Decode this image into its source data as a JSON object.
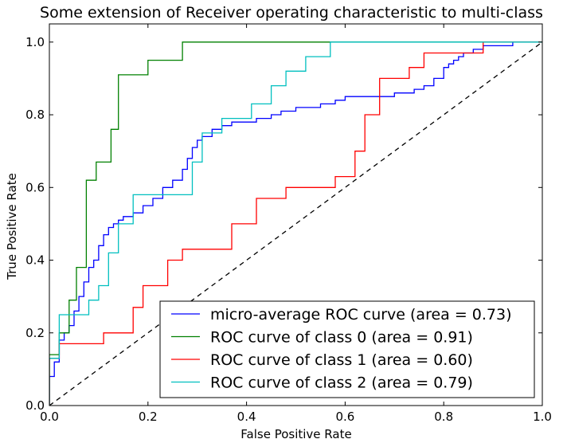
{
  "chart_data": {
    "type": "line",
    "title": "Some extension of Receiver operating characteristic to multi-class",
    "xlabel": "False Positive Rate",
    "ylabel": "True Positive Rate",
    "xlim": [
      0.0,
      1.0
    ],
    "ylim": [
      0.0,
      1.05
    ],
    "xticks": [
      0.0,
      0.2,
      0.4,
      0.6,
      0.8,
      1.0
    ],
    "xtick_labels": [
      "0.0",
      "0.2",
      "0.4",
      "0.6",
      "0.8",
      "1.0"
    ],
    "yticks": [
      0.0,
      0.2,
      0.4,
      0.6,
      0.8,
      1.0
    ],
    "ytick_labels": [
      "0.0",
      "0.2",
      "0.4",
      "0.6",
      "0.8",
      "1.0"
    ],
    "grid": false,
    "legend_position": "lower-right",
    "series": [
      {
        "name": "micro-average ROC curve (area = 0.73)",
        "color": "#0000ff",
        "x": [
          0.0,
          0.0,
          0.01,
          0.01,
          0.02,
          0.02,
          0.03,
          0.03,
          0.04,
          0.04,
          0.05,
          0.05,
          0.06,
          0.06,
          0.07,
          0.07,
          0.08,
          0.08,
          0.09,
          0.09,
          0.1,
          0.1,
          0.11,
          0.11,
          0.12,
          0.12,
          0.13,
          0.13,
          0.14,
          0.14,
          0.15,
          0.15,
          0.17,
          0.17,
          0.19,
          0.19,
          0.21,
          0.21,
          0.23,
          0.23,
          0.25,
          0.25,
          0.27,
          0.27,
          0.28,
          0.28,
          0.29,
          0.29,
          0.3,
          0.3,
          0.31,
          0.31,
          0.33,
          0.33,
          0.35,
          0.35,
          0.37,
          0.37,
          0.42,
          0.42,
          0.45,
          0.45,
          0.47,
          0.47,
          0.5,
          0.5,
          0.55,
          0.55,
          0.58,
          0.58,
          0.6,
          0.6,
          0.65,
          0.65,
          0.7,
          0.7,
          0.74,
          0.74,
          0.76,
          0.76,
          0.78,
          0.78,
          0.8,
          0.8,
          0.81,
          0.81,
          0.82,
          0.82,
          0.83,
          0.83,
          0.84,
          0.84,
          0.86,
          0.86,
          0.88,
          0.88,
          0.9,
          0.9,
          0.94,
          0.94,
          1.0
        ],
        "y": [
          0.0,
          0.08,
          0.08,
          0.12,
          0.12,
          0.18,
          0.18,
          0.2,
          0.2,
          0.22,
          0.22,
          0.26,
          0.26,
          0.3,
          0.3,
          0.34,
          0.34,
          0.38,
          0.38,
          0.4,
          0.4,
          0.44,
          0.44,
          0.47,
          0.47,
          0.49,
          0.49,
          0.5,
          0.5,
          0.51,
          0.51,
          0.52,
          0.52,
          0.53,
          0.53,
          0.55,
          0.55,
          0.57,
          0.57,
          0.6,
          0.6,
          0.62,
          0.62,
          0.65,
          0.65,
          0.68,
          0.68,
          0.71,
          0.71,
          0.73,
          0.73,
          0.74,
          0.74,
          0.76,
          0.76,
          0.77,
          0.77,
          0.78,
          0.78,
          0.79,
          0.79,
          0.8,
          0.8,
          0.81,
          0.81,
          0.82,
          0.82,
          0.83,
          0.83,
          0.84,
          0.84,
          0.85,
          0.85,
          0.85,
          0.85,
          0.86,
          0.86,
          0.87,
          0.87,
          0.88,
          0.88,
          0.9,
          0.9,
          0.93,
          0.93,
          0.94,
          0.94,
          0.95,
          0.95,
          0.96,
          0.96,
          0.97,
          0.97,
          0.98,
          0.98,
          0.99,
          0.99,
          0.99,
          0.99,
          1.0,
          1.0
        ]
      },
      {
        "name": "ROC curve of class 0 (area = 0.91)",
        "color": "#008000",
        "x": [
          0.0,
          0.0,
          0.02,
          0.02,
          0.04,
          0.04,
          0.055,
          0.055,
          0.075,
          0.075,
          0.095,
          0.095,
          0.125,
          0.125,
          0.14,
          0.14,
          0.2,
          0.2,
          0.27,
          0.27,
          1.0
        ],
        "y": [
          0.0,
          0.14,
          0.14,
          0.2,
          0.2,
          0.29,
          0.29,
          0.38,
          0.38,
          0.62,
          0.62,
          0.67,
          0.67,
          0.76,
          0.76,
          0.91,
          0.91,
          0.95,
          0.95,
          1.0,
          1.0
        ]
      },
      {
        "name": "ROC curve of class 1 (area = 0.60)",
        "color": "#ff0000",
        "x": [
          0.0,
          0.0,
          0.02,
          0.02,
          0.11,
          0.11,
          0.17,
          0.17,
          0.19,
          0.19,
          0.24,
          0.24,
          0.27,
          0.27,
          0.37,
          0.37,
          0.42,
          0.42,
          0.48,
          0.48,
          0.58,
          0.58,
          0.62,
          0.62,
          0.64,
          0.64,
          0.67,
          0.67,
          0.73,
          0.73,
          0.76,
          0.76,
          0.88,
          0.88,
          1.0
        ],
        "y": [
          0.0,
          0.13,
          0.13,
          0.17,
          0.17,
          0.2,
          0.2,
          0.27,
          0.27,
          0.33,
          0.33,
          0.4,
          0.4,
          0.43,
          0.43,
          0.5,
          0.5,
          0.57,
          0.57,
          0.6,
          0.6,
          0.63,
          0.63,
          0.7,
          0.7,
          0.8,
          0.8,
          0.9,
          0.9,
          0.93,
          0.93,
          0.97,
          0.97,
          1.0,
          1.0
        ]
      },
      {
        "name": "ROC curve of class 2 (area = 0.79)",
        "color": "#00bfbf",
        "x": [
          0.0,
          0.0,
          0.02,
          0.02,
          0.08,
          0.08,
          0.1,
          0.1,
          0.12,
          0.12,
          0.14,
          0.14,
          0.17,
          0.17,
          0.29,
          0.29,
          0.31,
          0.31,
          0.35,
          0.35,
          0.41,
          0.41,
          0.45,
          0.45,
          0.48,
          0.48,
          0.52,
          0.52,
          0.57,
          0.57,
          1.0
        ],
        "y": [
          0.0,
          0.13,
          0.13,
          0.25,
          0.25,
          0.29,
          0.29,
          0.33,
          0.33,
          0.42,
          0.42,
          0.5,
          0.5,
          0.58,
          0.58,
          0.67,
          0.67,
          0.75,
          0.75,
          0.79,
          0.79,
          0.83,
          0.83,
          0.88,
          0.88,
          0.92,
          0.92,
          0.96,
          0.96,
          1.0,
          1.0
        ]
      }
    ],
    "reference_line": {
      "x": [
        0.0,
        1.0
      ],
      "y": [
        0.0,
        1.0
      ],
      "color": "#000000",
      "style": "dashed"
    }
  }
}
